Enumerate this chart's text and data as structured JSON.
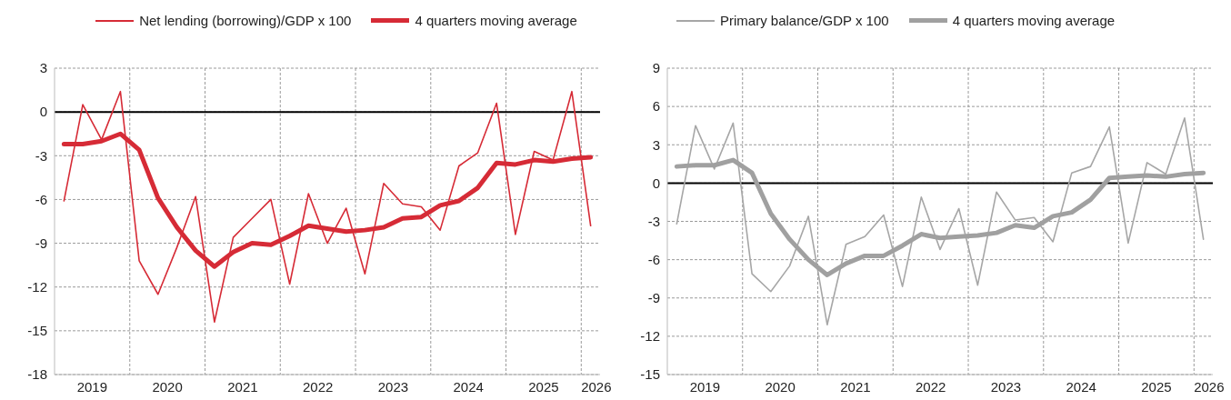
{
  "chart_data": [
    {
      "type": "line",
      "x": [
        2019.125,
        2019.375,
        2019.625,
        2019.875,
        2020.125,
        2020.375,
        2020.625,
        2020.875,
        2021.125,
        2021.375,
        2021.625,
        2021.875,
        2022.125,
        2022.375,
        2022.625,
        2022.875,
        2023.125,
        2023.375,
        2023.625,
        2023.875,
        2024.125,
        2024.375,
        2024.625,
        2024.875,
        2025.125,
        2025.375,
        2025.625,
        2025.875,
        2026.125
      ],
      "series": [
        {
          "name": "Net lending (borrowing)/GDP x 100",
          "color": "#d62b36",
          "values": [
            -6.1,
            0.5,
            -1.9,
            1.4,
            -10.2,
            -12.5,
            -9.3,
            -5.8,
            -14.4,
            -8.6,
            -7.3,
            -6.0,
            -11.8,
            -5.6,
            -9.0,
            -6.6,
            -11.1,
            -4.9,
            -6.3,
            -6.5,
            -8.1,
            -3.7,
            -2.8,
            0.6,
            -8.4,
            -2.7,
            -3.3,
            1.4,
            -7.8
          ]
        },
        {
          "name": "4 quarters moving average",
          "color": "#d62b36",
          "values": [
            -2.2,
            -2.2,
            -2.0,
            -1.5,
            -2.6,
            -5.9,
            -7.9,
            -9.5,
            -10.6,
            -9.6,
            -9.0,
            -9.1,
            -8.5,
            -7.8,
            -8.0,
            -8.2,
            -8.1,
            -7.9,
            -7.3,
            -7.2,
            -6.4,
            -6.1,
            -5.2,
            -3.5,
            -3.6,
            -3.3,
            -3.4,
            -3.2,
            -3.1
          ]
        }
      ],
      "xlim": [
        2019,
        2026.25
      ],
      "xticks": [
        {
          "value": 2019.5,
          "label": "2019"
        },
        {
          "value": 2020,
          "label": null
        },
        {
          "value": 2020.5,
          "label": "2020"
        },
        {
          "value": 2021,
          "label": null
        },
        {
          "value": 2021.5,
          "label": "2021"
        },
        {
          "value": 2022,
          "label": null
        },
        {
          "value": 2022.5,
          "label": "2022"
        },
        {
          "value": 2023,
          "label": null
        },
        {
          "value": 2023.5,
          "label": "2023"
        },
        {
          "value": 2024,
          "label": null
        },
        {
          "value": 2024.5,
          "label": "2024"
        },
        {
          "value": 2025,
          "label": null
        },
        {
          "value": 2025.5,
          "label": "2025"
        },
        {
          "value": 2026,
          "label": null
        },
        {
          "value": 2026.2,
          "label": "2026"
        }
      ],
      "ylim": [
        -18,
        3
      ],
      "yticks": [
        -18,
        -15,
        -12,
        -9,
        -6,
        -3,
        0,
        3
      ],
      "ref_lines": [
        {
          "axis": "y",
          "value": 0,
          "color": "#000000"
        }
      ],
      "grid": true,
      "legend": "top"
    },
    {
      "type": "line",
      "x": [
        2019.125,
        2019.375,
        2019.625,
        2019.875,
        2020.125,
        2020.375,
        2020.625,
        2020.875,
        2021.125,
        2021.375,
        2021.625,
        2021.875,
        2022.125,
        2022.375,
        2022.625,
        2022.875,
        2023.125,
        2023.375,
        2023.625,
        2023.875,
        2024.125,
        2024.375,
        2024.625,
        2024.875,
        2025.125,
        2025.375,
        2025.625,
        2025.875,
        2026.125
      ],
      "series": [
        {
          "name": "Primary balance/GDP x 100",
          "color": "#a6a6a6",
          "values": [
            -3.2,
            4.5,
            1.1,
            4.7,
            -7.1,
            -8.5,
            -6.5,
            -2.6,
            -11.1,
            -4.8,
            -4.2,
            -2.5,
            -8.1,
            -1.1,
            -5.2,
            -2.0,
            -8.0,
            -0.7,
            -2.9,
            -2.7,
            -4.6,
            0.8,
            1.3,
            4.4,
            -4.7,
            1.6,
            0.7,
            5.1,
            -4.4
          ]
        },
        {
          "name": "4 quarters moving average",
          "color": "#a0a0a0",
          "values": [
            1.3,
            1.4,
            1.4,
            1.8,
            0.8,
            -2.4,
            -4.4,
            -6.0,
            -7.2,
            -6.3,
            -5.7,
            -5.7,
            -4.9,
            -4.0,
            -4.3,
            -4.2,
            -4.1,
            -3.9,
            -3.3,
            -3.5,
            -2.6,
            -2.3,
            -1.3,
            0.4,
            0.5,
            0.6,
            0.5,
            0.7,
            0.8
          ]
        }
      ],
      "xlim": [
        2019,
        2026.25
      ],
      "xticks": [
        {
          "value": 2019.5,
          "label": "2019"
        },
        {
          "value": 2020,
          "label": null
        },
        {
          "value": 2020.5,
          "label": "2020"
        },
        {
          "value": 2021,
          "label": null
        },
        {
          "value": 2021.5,
          "label": "2021"
        },
        {
          "value": 2022,
          "label": null
        },
        {
          "value": 2022.5,
          "label": "2022"
        },
        {
          "value": 2023,
          "label": null
        },
        {
          "value": 2023.5,
          "label": "2023"
        },
        {
          "value": 2024,
          "label": null
        },
        {
          "value": 2024.5,
          "label": "2024"
        },
        {
          "value": 2025,
          "label": null
        },
        {
          "value": 2025.5,
          "label": "2025"
        },
        {
          "value": 2026,
          "label": null
        },
        {
          "value": 2026.2,
          "label": "2026"
        }
      ],
      "ylim": [
        -15,
        9
      ],
      "yticks": [
        -15,
        -12,
        -9,
        -6,
        -3,
        0,
        3,
        6,
        9
      ],
      "ref_lines": [
        {
          "axis": "y",
          "value": 0,
          "color": "#000000"
        }
      ],
      "grid": true,
      "legend": "top left"
    }
  ]
}
